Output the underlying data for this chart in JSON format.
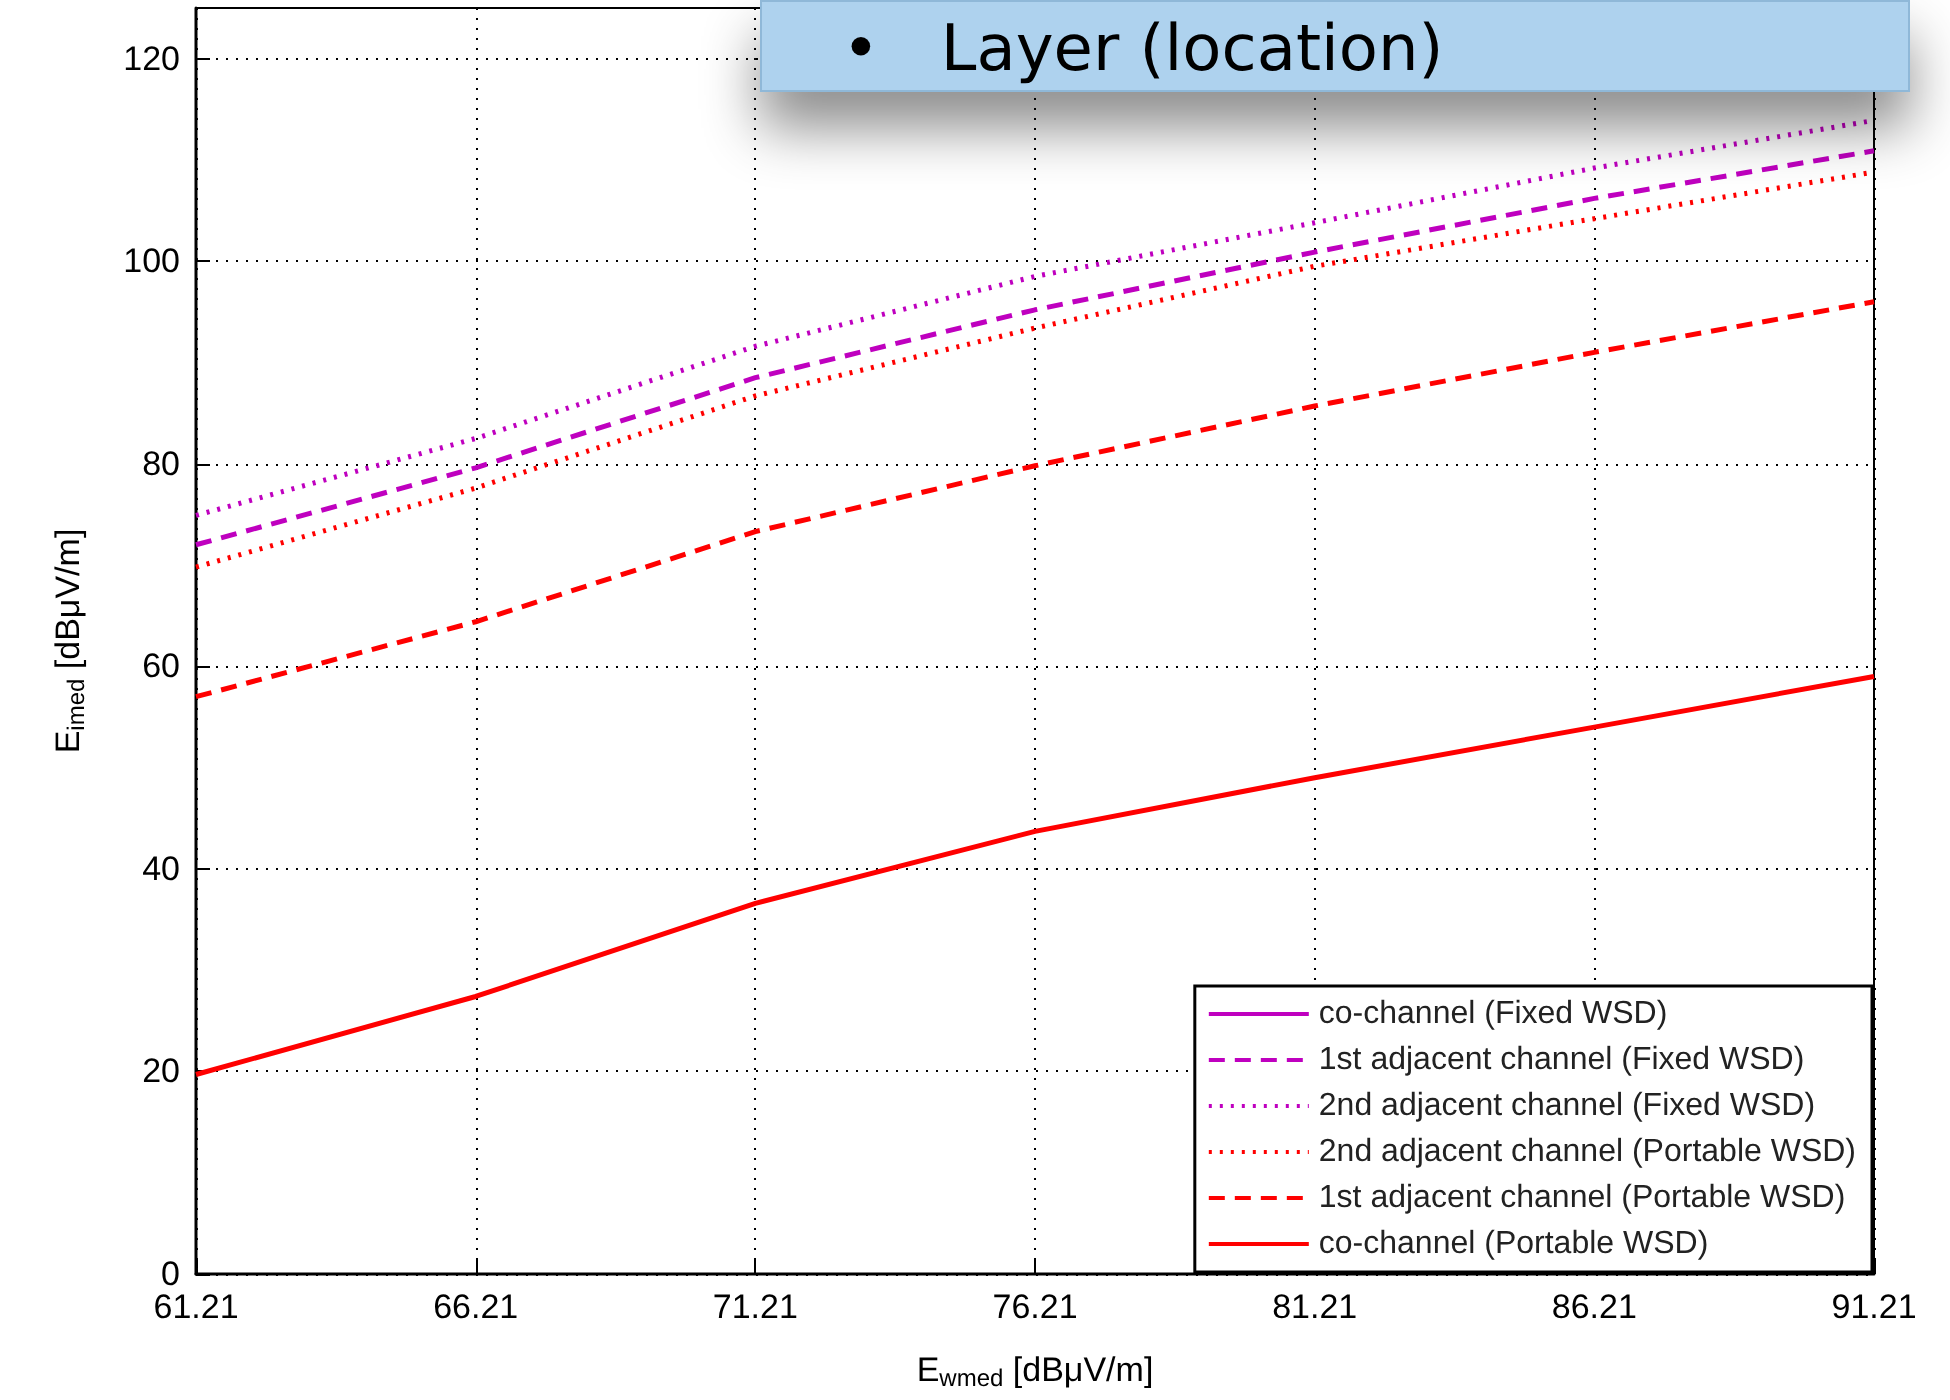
{
  "chart_data": {
    "type": "line",
    "x": [
      61.21,
      66.21,
      71.21,
      76.21,
      81.21,
      86.21,
      91.21
    ],
    "xlabel": "E$_{wmed}$ [dBμV/m]",
    "ylabel": "E$_{imed}$ [dBμV/m]",
    "xlim": [
      61.21,
      91.21
    ],
    "xticks": [
      61.21,
      66.21,
      71.21,
      76.21,
      81.21,
      86.21,
      91.21
    ],
    "ylim": [
      0,
      125
    ],
    "yticks": [
      0,
      20,
      40,
      60,
      80,
      100,
      120
    ],
    "grid": true,
    "legend": "bottom right",
    "marker": "none",
    "annotations": [
      "•   Layer (location)"
    ],
    "series": [
      {
        "name": "co-channel (Fixed WSD)",
        "color": "#bf00bf",
        "line_style": "solid",
        "values": [
          null,
          null,
          null,
          null,
          null,
          null,
          null
        ]
      },
      {
        "name": "1st adjacent channel (Fixed WSD)",
        "color": "#bf00bf",
        "line_style": "dashed",
        "values": [
          72,
          79.6,
          88.5,
          95.2,
          100.9,
          106.2,
          110.9
        ]
      },
      {
        "name": "2nd adjacent channel (Fixed WSD)",
        "color": "#bf00bf",
        "line_style": "dotted",
        "values": [
          74.9,
          82.5,
          91.6,
          98.5,
          103.8,
          109.2,
          113.9
        ]
      },
      {
        "name": "2nd adjacent channel (Portable WSD)",
        "color": "#ff0000",
        "line_style": "dotted",
        "values": [
          69.8,
          77.6,
          86.7,
          93.4,
          99.5,
          104.2,
          108.8
        ]
      },
      {
        "name": "1st adjacent channel (Portable WSD)",
        "color": "#ff0000",
        "line_style": "dashed",
        "values": [
          57,
          64.4,
          73.3,
          79.8,
          85.7,
          91,
          96
        ]
      },
      {
        "name": "co-channel (Portable WSD)",
        "color": "#ff0000",
        "line_style": "solid",
        "values": [
          19.7,
          27.4,
          36.6,
          43.7,
          49,
          54,
          59
        ]
      }
    ]
  }
}
